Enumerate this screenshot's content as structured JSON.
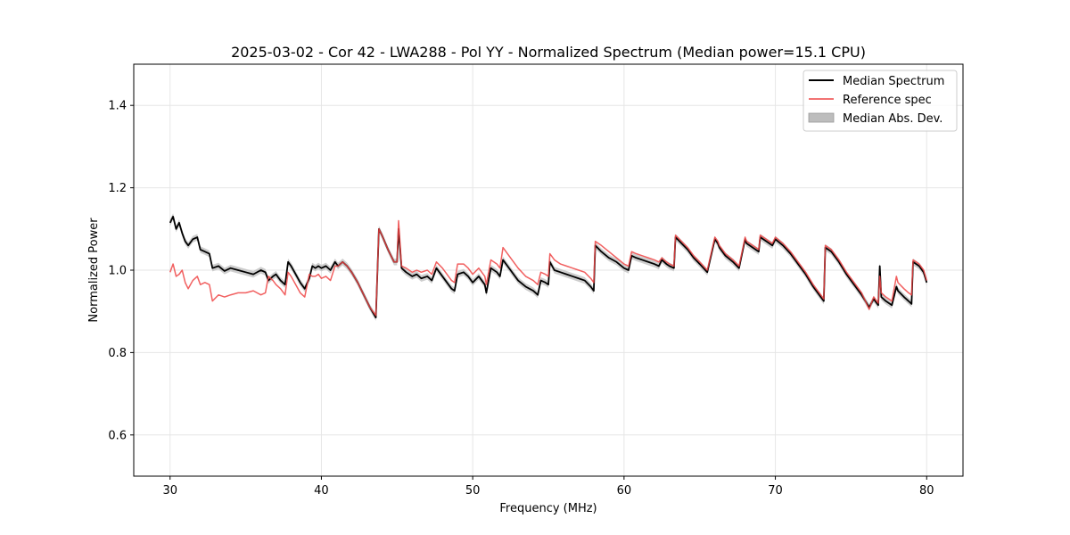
{
  "chart_data": {
    "type": "line",
    "title": "2025-03-02 - Cor 42 - LWA288 - Pol YY - Normalized Spectrum (Median power=15.1 CPU)",
    "xlabel": "Frequency (MHz)",
    "ylabel": "Normalized Power",
    "xlim": [
      27.6,
      82.4
    ],
    "ylim": [
      0.5,
      1.5
    ],
    "xticks": [
      30,
      40,
      50,
      60,
      70,
      80
    ],
    "xtick_labels": [
      "30",
      "40",
      "50",
      "60",
      "70",
      "80"
    ],
    "yticks": [
      0.6,
      0.8,
      1.0,
      1.2,
      1.4
    ],
    "ytick_labels": [
      "0.6",
      "0.8",
      "1.0",
      "1.2",
      "1.4"
    ],
    "grid": true,
    "legend_position": "top-right",
    "series": [
      {
        "name": "Median Spectrum",
        "color": "#000000",
        "x": [
          30.0,
          30.2,
          30.4,
          30.6,
          30.8,
          31.0,
          31.2,
          31.5,
          31.8,
          32.0,
          32.3,
          32.6,
          32.8,
          33.2,
          33.6,
          34.0,
          34.5,
          35.0,
          35.5,
          36.0,
          36.3,
          36.5,
          36.8,
          37.0,
          37.3,
          37.6,
          37.8,
          38.0,
          38.3,
          38.6,
          38.9,
          39.2,
          39.4,
          39.6,
          39.8,
          40.0,
          40.3,
          40.6,
          40.9,
          41.1,
          41.4,
          41.7,
          42.0,
          42.4,
          42.8,
          43.2,
          43.6,
          43.8,
          44.0,
          44.4,
          44.8,
          45.0,
          45.1,
          45.3,
          45.6,
          46.0,
          46.3,
          46.6,
          47.0,
          47.3,
          47.6,
          48.0,
          48.4,
          48.6,
          48.8,
          49.0,
          49.4,
          49.7,
          50.0,
          50.4,
          50.8,
          50.9,
          51.2,
          51.6,
          51.8,
          52.0,
          52.5,
          53.0,
          53.5,
          54.0,
          54.3,
          54.5,
          54.8,
          55.0,
          55.1,
          55.4,
          55.8,
          56.2,
          56.6,
          57.0,
          57.4,
          57.8,
          58.0,
          58.1,
          58.5,
          59.0,
          59.5,
          60.0,
          60.3,
          60.5,
          60.8,
          61.2,
          61.6,
          62.0,
          62.3,
          62.5,
          62.8,
          63.0,
          63.3,
          63.4,
          63.8,
          64.2,
          64.6,
          65.0,
          65.5,
          66.0,
          66.2,
          66.3,
          66.7,
          67.2,
          67.6,
          68.0,
          68.1,
          68.5,
          68.9,
          69.0,
          69.4,
          69.8,
          70.0,
          70.5,
          71.0,
          71.5,
          72.0,
          72.5,
          73.0,
          73.2,
          73.3,
          73.7,
          74.2,
          74.7,
          75.2,
          75.7,
          76.2,
          76.5,
          76.8,
          76.9,
          77.0,
          77.3,
          77.7,
          78.0,
          78.1,
          78.5,
          78.8,
          79.0,
          79.1,
          79.5,
          79.8,
          80.0
        ],
        "y": [
          1.115,
          1.13,
          1.1,
          1.115,
          1.09,
          1.07,
          1.06,
          1.075,
          1.08,
          1.05,
          1.045,
          1.04,
          1.005,
          1.01,
          0.998,
          1.005,
          1.0,
          0.995,
          0.99,
          1.0,
          0.995,
          0.975,
          0.985,
          0.99,
          0.975,
          0.965,
          1.02,
          1.01,
          0.99,
          0.97,
          0.955,
          0.98,
          1.01,
          1.005,
          1.01,
          1.005,
          1.01,
          1.0,
          1.02,
          1.01,
          1.02,
          1.01,
          0.995,
          0.97,
          0.94,
          0.91,
          0.885,
          1.1,
          1.085,
          1.05,
          1.02,
          1.02,
          1.1,
          1.005,
          0.995,
          0.985,
          0.99,
          0.98,
          0.985,
          0.975,
          1.005,
          0.985,
          0.965,
          0.955,
          0.95,
          0.99,
          0.995,
          0.985,
          0.97,
          0.985,
          0.965,
          0.945,
          1.005,
          0.995,
          0.985,
          1.025,
          1.0,
          0.975,
          0.96,
          0.95,
          0.94,
          0.975,
          0.97,
          0.965,
          1.02,
          1.0,
          0.995,
          0.99,
          0.985,
          0.98,
          0.975,
          0.96,
          0.95,
          1.06,
          1.045,
          1.03,
          1.02,
          1.005,
          1.0,
          1.035,
          1.03,
          1.025,
          1.02,
          1.015,
          1.01,
          1.025,
          1.015,
          1.01,
          1.005,
          1.08,
          1.065,
          1.05,
          1.03,
          1.015,
          0.995,
          1.075,
          1.065,
          1.055,
          1.035,
          1.02,
          1.005,
          1.075,
          1.065,
          1.055,
          1.045,
          1.08,
          1.07,
          1.06,
          1.075,
          1.06,
          1.04,
          1.015,
          0.99,
          0.96,
          0.935,
          0.925,
          1.055,
          1.045,
          1.02,
          0.99,
          0.965,
          0.94,
          0.91,
          0.93,
          0.915,
          1.01,
          0.935,
          0.925,
          0.915,
          0.96,
          0.95,
          0.935,
          0.925,
          0.918,
          1.02,
          1.01,
          0.995,
          0.97
        ]
      },
      {
        "name": "Reference spec",
        "color": "#ee4444",
        "x": [
          30.0,
          30.2,
          30.4,
          30.6,
          30.8,
          31.0,
          31.2,
          31.5,
          31.8,
          32.0,
          32.3,
          32.6,
          32.8,
          33.2,
          33.6,
          34.0,
          34.5,
          35.0,
          35.5,
          36.0,
          36.3,
          36.5,
          36.8,
          37.0,
          37.3,
          37.6,
          37.8,
          38.0,
          38.3,
          38.6,
          38.9,
          39.2,
          39.4,
          39.6,
          39.8,
          40.0,
          40.3,
          40.6,
          40.9,
          41.1,
          41.4,
          41.7,
          42.0,
          42.4,
          42.8,
          43.2,
          43.6,
          43.8,
          44.0,
          44.4,
          44.8,
          45.0,
          45.1,
          45.3,
          45.6,
          46.0,
          46.3,
          46.6,
          47.0,
          47.3,
          47.6,
          48.0,
          48.4,
          48.6,
          48.8,
          49.0,
          49.4,
          49.7,
          50.0,
          50.4,
          50.8,
          50.9,
          51.2,
          51.6,
          51.8,
          52.0,
          52.5,
          53.0,
          53.5,
          54.0,
          54.3,
          54.5,
          54.8,
          55.0,
          55.1,
          55.4,
          55.8,
          56.2,
          56.6,
          57.0,
          57.4,
          57.8,
          58.0,
          58.1,
          58.5,
          59.0,
          59.5,
          60.0,
          60.3,
          60.5,
          60.8,
          61.2,
          61.6,
          62.0,
          62.3,
          62.5,
          62.8,
          63.0,
          63.3,
          63.4,
          63.8,
          64.2,
          64.6,
          65.0,
          65.5,
          66.0,
          66.2,
          66.3,
          66.7,
          67.2,
          67.6,
          68.0,
          68.1,
          68.5,
          68.9,
          69.0,
          69.4,
          69.8,
          70.0,
          70.5,
          71.0,
          71.5,
          72.0,
          72.5,
          73.0,
          73.2,
          73.3,
          73.7,
          74.2,
          74.7,
          75.2,
          75.7,
          76.2,
          76.5,
          76.8,
          76.9,
          77.0,
          77.3,
          77.7,
          78.0,
          78.1,
          78.5,
          78.8,
          79.0,
          79.1,
          79.5,
          79.8,
          80.0
        ],
        "y": [
          0.995,
          1.015,
          0.985,
          0.99,
          1.0,
          0.97,
          0.955,
          0.975,
          0.985,
          0.965,
          0.97,
          0.965,
          0.925,
          0.94,
          0.935,
          0.94,
          0.945,
          0.945,
          0.95,
          0.94,
          0.945,
          0.985,
          0.975,
          0.965,
          0.955,
          0.94,
          0.995,
          0.985,
          0.965,
          0.945,
          0.935,
          0.99,
          0.985,
          0.985,
          0.99,
          0.98,
          0.985,
          0.975,
          1.01,
          1.01,
          1.02,
          1.01,
          0.995,
          0.97,
          0.94,
          0.91,
          0.89,
          1.1,
          1.085,
          1.05,
          1.02,
          1.02,
          1.12,
          1.01,
          1.005,
          0.995,
          1.0,
          0.995,
          1.0,
          0.99,
          1.02,
          1.005,
          0.985,
          0.975,
          0.97,
          1.015,
          1.015,
          1.005,
          0.99,
          1.005,
          0.985,
          0.965,
          1.025,
          1.015,
          1.005,
          1.055,
          1.03,
          1.005,
          0.985,
          0.975,
          0.965,
          0.995,
          0.99,
          0.985,
          1.04,
          1.025,
          1.015,
          1.01,
          1.005,
          1.0,
          0.995,
          0.98,
          0.97,
          1.07,
          1.06,
          1.045,
          1.03,
          1.015,
          1.01,
          1.045,
          1.04,
          1.035,
          1.03,
          1.025,
          1.02,
          1.03,
          1.02,
          1.015,
          1.01,
          1.085,
          1.07,
          1.055,
          1.035,
          1.02,
          1.0,
          1.08,
          1.07,
          1.06,
          1.04,
          1.025,
          1.01,
          1.08,
          1.07,
          1.06,
          1.05,
          1.085,
          1.075,
          1.065,
          1.08,
          1.065,
          1.045,
          1.02,
          0.995,
          0.965,
          0.94,
          0.93,
          1.06,
          1.05,
          1.025,
          0.995,
          0.97,
          0.945,
          0.905,
          0.935,
          0.92,
          0.985,
          0.945,
          0.935,
          0.925,
          0.985,
          0.97,
          0.955,
          0.945,
          0.94,
          1.025,
          1.015,
          1.0,
          0.975
        ]
      }
    ],
    "band": {
      "name": "Median Abs. Dev.",
      "color": "#bdbdbd",
      "half_width": 0.008
    }
  }
}
